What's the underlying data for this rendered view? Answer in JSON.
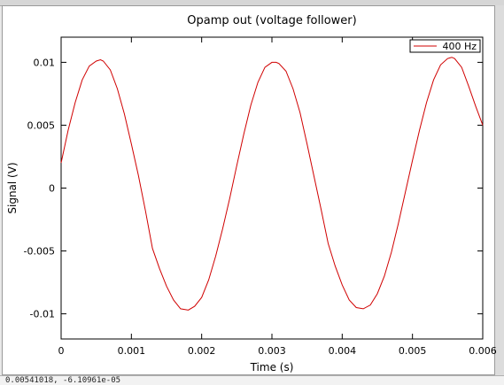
{
  "window": {
    "status_text": "0.00541018,  -6.10961e-05"
  },
  "colors": {
    "series": "#d00000",
    "axis": "#000000"
  },
  "chart_data": {
    "type": "line",
    "title": "Opamp out (voltage follower)",
    "xlabel": "Time (s)",
    "ylabel": "Signal (V)",
    "xlim": [
      0,
      0.006
    ],
    "ylim": [
      -0.012,
      0.012
    ],
    "x_ticks": [
      0,
      0.001,
      0.002,
      0.003,
      0.004,
      0.005,
      0.006
    ],
    "x_tick_labels": [
      "0",
      "0.001",
      "0.002",
      "0.003",
      "0.004",
      "0.005",
      "0.006"
    ],
    "y_ticks": [
      0.01,
      0.005,
      0,
      -0.005,
      -0.01
    ],
    "y_tick_labels": [
      "0.01",
      "0.005",
      "0",
      "-0.005",
      "-0.01"
    ],
    "legend_position": "top-right",
    "series": [
      {
        "name": "400 Hz",
        "color": "#d00000",
        "x": [
          0,
          0.0001,
          0.0002,
          0.0003,
          0.0004,
          0.0005,
          0.00056,
          0.0006,
          0.0007,
          0.0008,
          0.0009,
          0.001,
          0.0011,
          0.0012,
          0.0013,
          0.0014,
          0.0015,
          0.0016,
          0.0017,
          0.00181,
          0.0019,
          0.002,
          0.0021,
          0.0022,
          0.0023,
          0.0024,
          0.0025,
          0.0026,
          0.0027,
          0.0028,
          0.0029,
          0.003,
          0.00306,
          0.0031,
          0.0032,
          0.0033,
          0.0034,
          0.0035,
          0.0036,
          0.0037,
          0.0038,
          0.0039,
          0.004,
          0.0041,
          0.0042,
          0.0043,
          0.0044,
          0.0045,
          0.0046,
          0.0047,
          0.0048,
          0.0049,
          0.005,
          0.0051,
          0.0052,
          0.0053,
          0.0054,
          0.0055,
          0.00556,
          0.0056,
          0.0057,
          0.0058,
          0.0059,
          0.006
        ],
        "values": [
          0.002,
          0.0046,
          0.0068,
          0.0086,
          0.0097,
          0.0101,
          0.0102,
          0.0101,
          0.0094,
          0.0079,
          0.0059,
          0.0035,
          0.001,
          -0.0018,
          -0.0048,
          -0.0064,
          -0.0078,
          -0.0089,
          -0.0096,
          -0.0097,
          -0.0094,
          -0.0087,
          -0.0073,
          -0.0054,
          -0.0032,
          -0.0008,
          0.0018,
          0.0043,
          0.0066,
          0.0084,
          0.0096,
          0.01,
          0.01,
          0.0099,
          0.0093,
          0.0079,
          0.006,
          0.0035,
          0.0009,
          -0.0017,
          -0.0044,
          -0.0062,
          -0.0077,
          -0.0089,
          -0.0095,
          -0.0096,
          -0.0093,
          -0.0084,
          -0.007,
          -0.0051,
          -0.0028,
          -0.0003,
          0.0022,
          0.0046,
          0.0068,
          0.0086,
          0.0098,
          0.0103,
          0.0104,
          0.0103,
          0.0096,
          0.0081,
          0.0065,
          0.005
        ]
      }
    ]
  }
}
